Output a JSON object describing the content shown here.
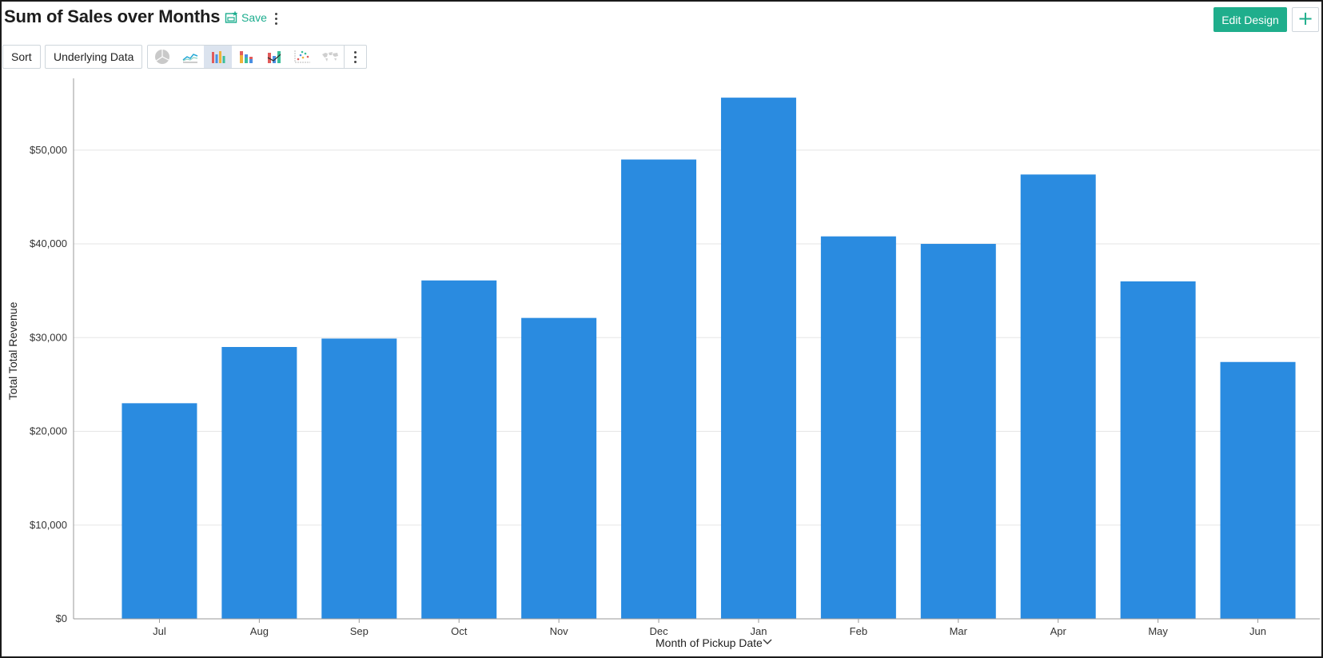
{
  "header": {
    "title": "Sum of Sales over Months",
    "save_label": "Save",
    "edit_design_label": "Edit Design",
    "add_label": "+"
  },
  "toolbar": {
    "sort_label": "Sort",
    "underlying_data_label": "Underlying Data",
    "chart_types": [
      {
        "icon": "pie-chart-icon",
        "active": false
      },
      {
        "icon": "line-chart-icon",
        "active": false
      },
      {
        "icon": "bar-chart-icon",
        "active": true
      },
      {
        "icon": "stacked-bar-chart-icon",
        "active": false
      },
      {
        "icon": "combination-chart-icon",
        "active": false
      },
      {
        "icon": "scatter-chart-icon",
        "active": false
      },
      {
        "icon": "map-chart-icon",
        "active": false
      }
    ]
  },
  "colors": {
    "accent": "#1fae8c",
    "bar": "#2a8be0",
    "grid": "#e6e6e6"
  },
  "chart_data": {
    "type": "bar",
    "title": "Sum of Sales over Months",
    "xlabel": "Month of Pickup Date",
    "ylabel": "Total Total Revenue",
    "categories": [
      "Jul",
      "Aug",
      "Sep",
      "Oct",
      "Nov",
      "Dec",
      "Jan",
      "Feb",
      "Mar",
      "Apr",
      "May",
      "Jun"
    ],
    "values": [
      23000,
      29000,
      29900,
      36100,
      32100,
      49000,
      55600,
      40800,
      40000,
      47400,
      36000,
      27400
    ],
    "ylim": [
      0,
      58000
    ],
    "yticks": [
      0,
      10000,
      20000,
      30000,
      40000,
      50000
    ],
    "ytick_labels": [
      "$0",
      "$10,000",
      "$20,000",
      "$30,000",
      "$40,000",
      "$50,000"
    ],
    "grid": true,
    "legend": "none"
  }
}
